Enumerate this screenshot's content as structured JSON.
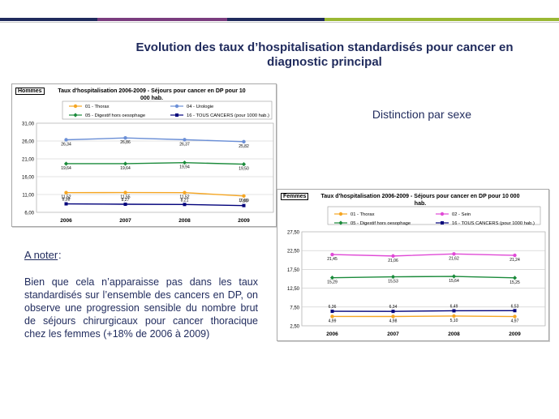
{
  "page": {
    "title_line1": "Evolution des taux d’hospitalisation standardisés pour cancer en",
    "title_line2": "diagnostic principal",
    "subtitle": "Distinction par sexe",
    "note_title": "A noter",
    "note_colon": " :",
    "note_body": "Bien que cela n’apparaisse pas dans les taux standardisés sur l’ensemble des cancers en DP, on observe une progression sensible du nombre brut de séjours chirurgicaux pour cancer thoracique chez les femmes (+18% de 2006 à 2009)"
  },
  "colors": {
    "title": "#1f2a5c",
    "bar1": "#1f2a5c",
    "bar2": "#7a3c7e",
    "bar3": "#9ab833"
  },
  "chart_data": [
    {
      "type": "line",
      "tag": "Hommes",
      "title": "Taux d'hospitalisation 2006-2009 - Séjours pour cancer en DP pour 10 000 hab.",
      "categories": [
        "2006",
        "2007",
        "2008",
        "2009"
      ],
      "ylim": [
        6.0,
        31.0
      ],
      "yticks": [
        "6,00",
        "11,00",
        "16,00",
        "21,00",
        "26,00",
        "31,00"
      ],
      "yticks_values": [
        6,
        11,
        16,
        21,
        26,
        31
      ],
      "grid": true,
      "legend": "top",
      "series": [
        {
          "name": "01 - Thorax",
          "color": "#f5a623",
          "marker": "circle",
          "values": [
            11.52,
            11.55,
            11.52,
            10.59
          ],
          "labels": [
            "11,52",
            "11,55",
            "11,52",
            "10,59"
          ]
        },
        {
          "name": "04 - Urologie",
          "color": "#6b8fd6",
          "marker": "circle",
          "values": [
            26.34,
            26.86,
            26.37,
            25.82
          ],
          "labels": [
            "26,34",
            "26,86",
            "26,37",
            "25,82"
          ]
        },
        {
          "name": "05 - Digestif hors oesophage",
          "color": "#1a8a3a",
          "marker": "diamond",
          "values": [
            19.64,
            19.64,
            19.94,
            19.5
          ],
          "labels": [
            "19,64",
            "19,64",
            "19,94",
            "19,50"
          ]
        },
        {
          "name": "16 - TOUS CANCERS (pour 1000 hab.)",
          "color": "#00007a",
          "marker": "square",
          "values": [
            8.38,
            8.27,
            8.21,
            7.9
          ],
          "labels": [
            "8,38",
            "8,27",
            "8,21",
            "7,90"
          ]
        }
      ]
    },
    {
      "type": "line",
      "tag": "Femmes",
      "title": "Taux d'hospitalisation 2006-2009 - Séjours pour cancer en DP pour 10 000 hab.",
      "categories": [
        "2006",
        "2007",
        "2008",
        "2009"
      ],
      "ylim": [
        2.5,
        27.5
      ],
      "yticks": [
        "2,50",
        "7,50",
        "12,50",
        "17,50",
        "22,50",
        "27,50"
      ],
      "yticks_values": [
        2.5,
        7.5,
        12.5,
        17.5,
        22.5,
        27.5
      ],
      "grid": true,
      "legend": "top",
      "series": [
        {
          "name": "01 - Thorax",
          "color": "#f5a623",
          "marker": "circle",
          "values": [
            4.99,
            4.98,
            5.1,
            4.97
          ],
          "labels": [
            "4,99",
            "4,98",
            "5,10",
            "4,97"
          ]
        },
        {
          "name": "02 - Sein",
          "color": "#e04ad6",
          "marker": "circle",
          "values": [
            21.45,
            21.06,
            21.62,
            21.24
          ],
          "labels": [
            "21,45",
            "21,06",
            "21,62",
            "21,24"
          ]
        },
        {
          "name": "05 - Digestif hors oesophage",
          "color": "#1a8a3a",
          "marker": "diamond",
          "values": [
            15.29,
            15.53,
            15.64,
            15.25
          ],
          "labels": [
            "15,29",
            "15,53",
            "15,64",
            "15,25"
          ]
        },
        {
          "name": "16 - TOUS CANCERS (pour 1000 hab.)",
          "color": "#00007a",
          "marker": "square",
          "values": [
            6.36,
            6.34,
            6.49,
            6.53
          ],
          "labels": [
            "6,36",
            "6,34",
            "6,49",
            "6,53"
          ]
        }
      ]
    }
  ]
}
